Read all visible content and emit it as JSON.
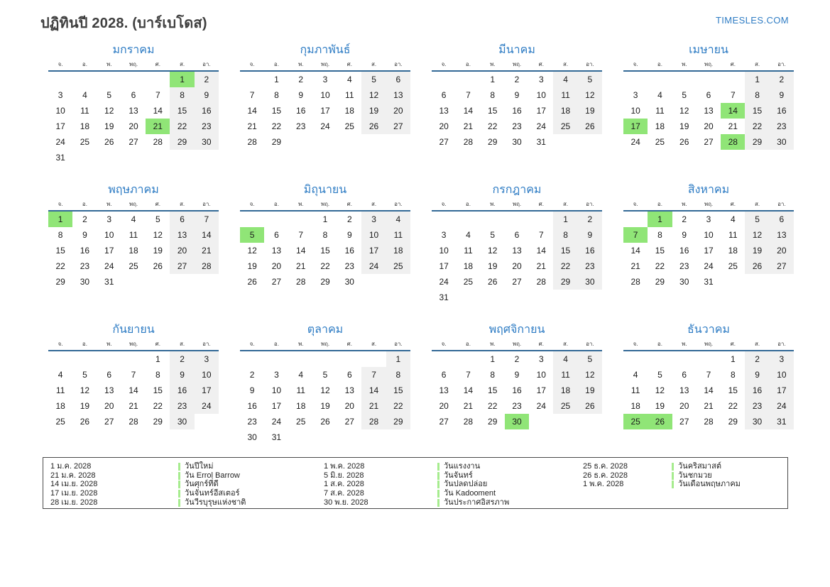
{
  "header": {
    "title": "ปฏิทินปี 2028. (บาร์เบโดส)",
    "site_link": "TIMESLES.COM"
  },
  "calendar": {
    "year": "2028",
    "weekday_headers": [
      "จ.",
      "อ.",
      "พ.",
      "พฤ.",
      "ศ.",
      "ส.",
      "อา."
    ],
    "months": [
      {
        "name": "มกราคม",
        "first_weekday": 6,
        "num_days": 31,
        "holiday_days": [
          1,
          21
        ]
      },
      {
        "name": "กุมภาพันธ์",
        "first_weekday": 2,
        "num_days": 29,
        "holiday_days": []
      },
      {
        "name": "มีนาคม",
        "first_weekday": 3,
        "num_days": 31,
        "holiday_days": []
      },
      {
        "name": "เมษายน",
        "first_weekday": 6,
        "num_days": 30,
        "holiday_days": [
          14,
          17,
          28
        ]
      },
      {
        "name": "พฤษภาคม",
        "first_weekday": 1,
        "num_days": 31,
        "holiday_days": [
          1
        ]
      },
      {
        "name": "มิถุนายน",
        "first_weekday": 4,
        "num_days": 30,
        "holiday_days": [
          5
        ]
      },
      {
        "name": "กรกฎาคม",
        "first_weekday": 6,
        "num_days": 31,
        "holiday_days": []
      },
      {
        "name": "สิงหาคม",
        "first_weekday": 2,
        "num_days": 31,
        "holiday_days": [
          1,
          7
        ]
      },
      {
        "name": "กันยายน",
        "first_weekday": 5,
        "num_days": 30,
        "holiday_days": []
      },
      {
        "name": "ตุลาคม",
        "first_weekday": 7,
        "num_days": 31,
        "holiday_days": []
      },
      {
        "name": "พฤศจิกายน",
        "first_weekday": 3,
        "num_days": 30,
        "holiday_days": [
          30
        ]
      },
      {
        "name": "ธันวาคม",
        "first_weekday": 5,
        "num_days": 31,
        "holiday_days": [
          25,
          26
        ]
      }
    ]
  },
  "legend": {
    "groups": [
      {
        "entries": [
          {
            "date": "1 ม.ค. 2028",
            "name": "วันปีใหม่"
          },
          {
            "date": "21 ม.ค. 2028",
            "name": "วัน Errol Barrow"
          },
          {
            "date": "14 เม.ย. 2028",
            "name": "วันศุกร์ที่ดี"
          },
          {
            "date": "17 เม.ย. 2028",
            "name": "วันจันทร์อีสเตอร์"
          },
          {
            "date": "28 เม.ย. 2028",
            "name": "วันวีรบุรุษแห่งชาติ"
          }
        ]
      },
      {
        "entries": [
          {
            "date": "1 พ.ค. 2028",
            "name": "วันแรงงาน"
          },
          {
            "date": "5 มิ.ย. 2028",
            "name": "วันจันทร์"
          },
          {
            "date": "1 ส.ค. 2028",
            "name": "วันปลดปล่อย"
          },
          {
            "date": "7 ส.ค. 2028",
            "name": "วัน Kadooment"
          },
          {
            "date": "30 พ.ย. 2028",
            "name": "วันประกาศอิสรภาพ"
          }
        ]
      },
      {
        "entries": [
          {
            "date": "25 ธ.ค. 2028",
            "name": "วันคริสมาสต์"
          },
          {
            "date": "26 ธ.ค. 2028",
            "name": "วันชกมวย"
          },
          {
            "date": "1 พ.ค. 2028",
            "name": "วันเดือนพฤษภาคม"
          }
        ]
      }
    ]
  },
  "colors": {
    "accent_blue": "#2e7cc4",
    "header_line_blue": "#336996",
    "holiday_green": "#90e577",
    "legend_bar_green": "#a6ec8e",
    "weekend_gray": "#f0f0f0"
  }
}
